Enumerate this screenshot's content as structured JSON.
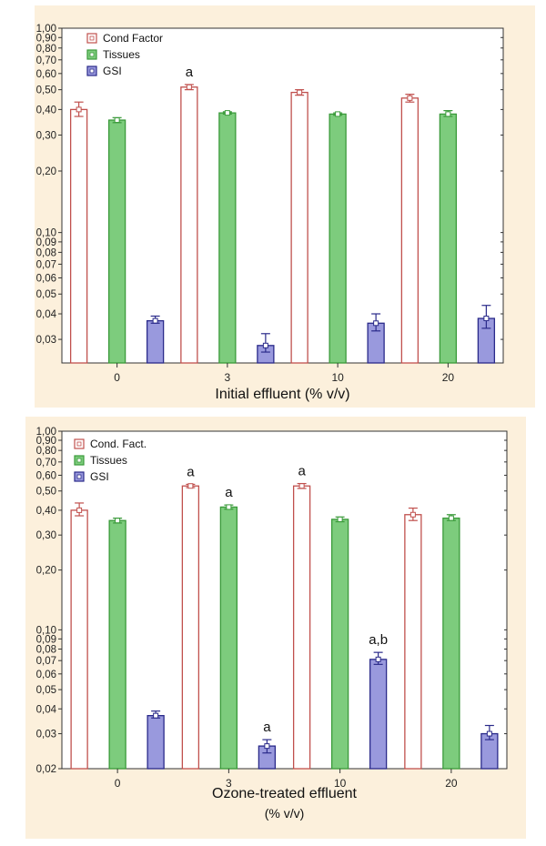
{
  "chart_data": [
    {
      "type": "bar",
      "scale": "log",
      "ylim": [
        0.023,
        1.0
      ],
      "y_ticks": [
        "0,03",
        "0,04",
        "0,05",
        "0,06",
        "0,07",
        "0,08",
        "0,09",
        "0,10",
        "0,20",
        "0,30",
        "0,40",
        "0,50",
        "0,60",
        "0,70",
        "0,80",
        "0,90",
        "1,00"
      ],
      "categories": [
        "0",
        "3",
        "10",
        "20"
      ],
      "xlabel": "Initial effluent (% v/v)",
      "xlabel2": "",
      "legend_position": "top-left",
      "series": [
        {
          "name": "Cond Factor",
          "color": "#c0504d",
          "fill": "#ffffff",
          "values": [
            0.4,
            0.515,
            0.485,
            0.455
          ],
          "err_low": [
            0.37,
            0.5,
            0.47,
            0.435
          ],
          "err_high": [
            0.435,
            0.53,
            0.5,
            0.475
          ],
          "labels": [
            "",
            "a",
            "",
            ""
          ]
        },
        {
          "name": "Tissues",
          "color": "#3a9a3a",
          "fill": "#7dcc7d",
          "values": [
            0.355,
            0.385,
            0.38,
            0.38
          ],
          "err_low": [
            0.345,
            0.38,
            0.375,
            0.37
          ],
          "err_high": [
            0.365,
            0.39,
            0.385,
            0.395
          ],
          "labels": [
            "",
            "",
            "",
            ""
          ]
        },
        {
          "name": "GSI",
          "color": "#2a2a8a",
          "fill": "#9999dd",
          "values": [
            0.037,
            0.028,
            0.036,
            0.038
          ],
          "err_low": [
            0.036,
            0.026,
            0.033,
            0.034
          ],
          "err_high": [
            0.039,
            0.032,
            0.04,
            0.044
          ],
          "labels": [
            "",
            "",
            "",
            ""
          ]
        }
      ]
    },
    {
      "type": "bar",
      "scale": "log",
      "ylim": [
        0.02,
        1.0
      ],
      "y_ticks": [
        "0,02",
        "0,03",
        "0,04",
        "0,05",
        "0,06",
        "0,07",
        "0,08",
        "0,09",
        "0,10",
        "0,20",
        "0,30",
        "0,40",
        "0,50",
        "0,60",
        "0,70",
        "0,80",
        "0,90",
        "1,00"
      ],
      "categories": [
        "0",
        "3",
        "10",
        "20"
      ],
      "xlabel": "Ozone-treated effluent",
      "xlabel2": "(% v/v)",
      "legend_position": "top-left",
      "series": [
        {
          "name": "Cond. Fact.",
          "color": "#c0504d",
          "fill": "#ffffff",
          "values": [
            0.4,
            0.53,
            0.53,
            0.38
          ],
          "err_low": [
            0.375,
            0.52,
            0.515,
            0.355
          ],
          "err_high": [
            0.435,
            0.54,
            0.545,
            0.41
          ],
          "labels": [
            "",
            "a",
            "a",
            ""
          ]
        },
        {
          "name": "Tissues",
          "color": "#3a9a3a",
          "fill": "#7dcc7d",
          "values": [
            0.355,
            0.415,
            0.36,
            0.365
          ],
          "err_low": [
            0.345,
            0.405,
            0.35,
            0.355
          ],
          "err_high": [
            0.365,
            0.425,
            0.37,
            0.38
          ],
          "labels": [
            "",
            "a",
            "",
            ""
          ]
        },
        {
          "name": "GSI",
          "color": "#2a2a8a",
          "fill": "#9999dd",
          "values": [
            0.037,
            0.026,
            0.071,
            0.03
          ],
          "err_low": [
            0.036,
            0.024,
            0.067,
            0.028
          ],
          "err_high": [
            0.039,
            0.028,
            0.077,
            0.033
          ],
          "labels": [
            "",
            "a",
            "a,b",
            ""
          ]
        }
      ]
    }
  ]
}
